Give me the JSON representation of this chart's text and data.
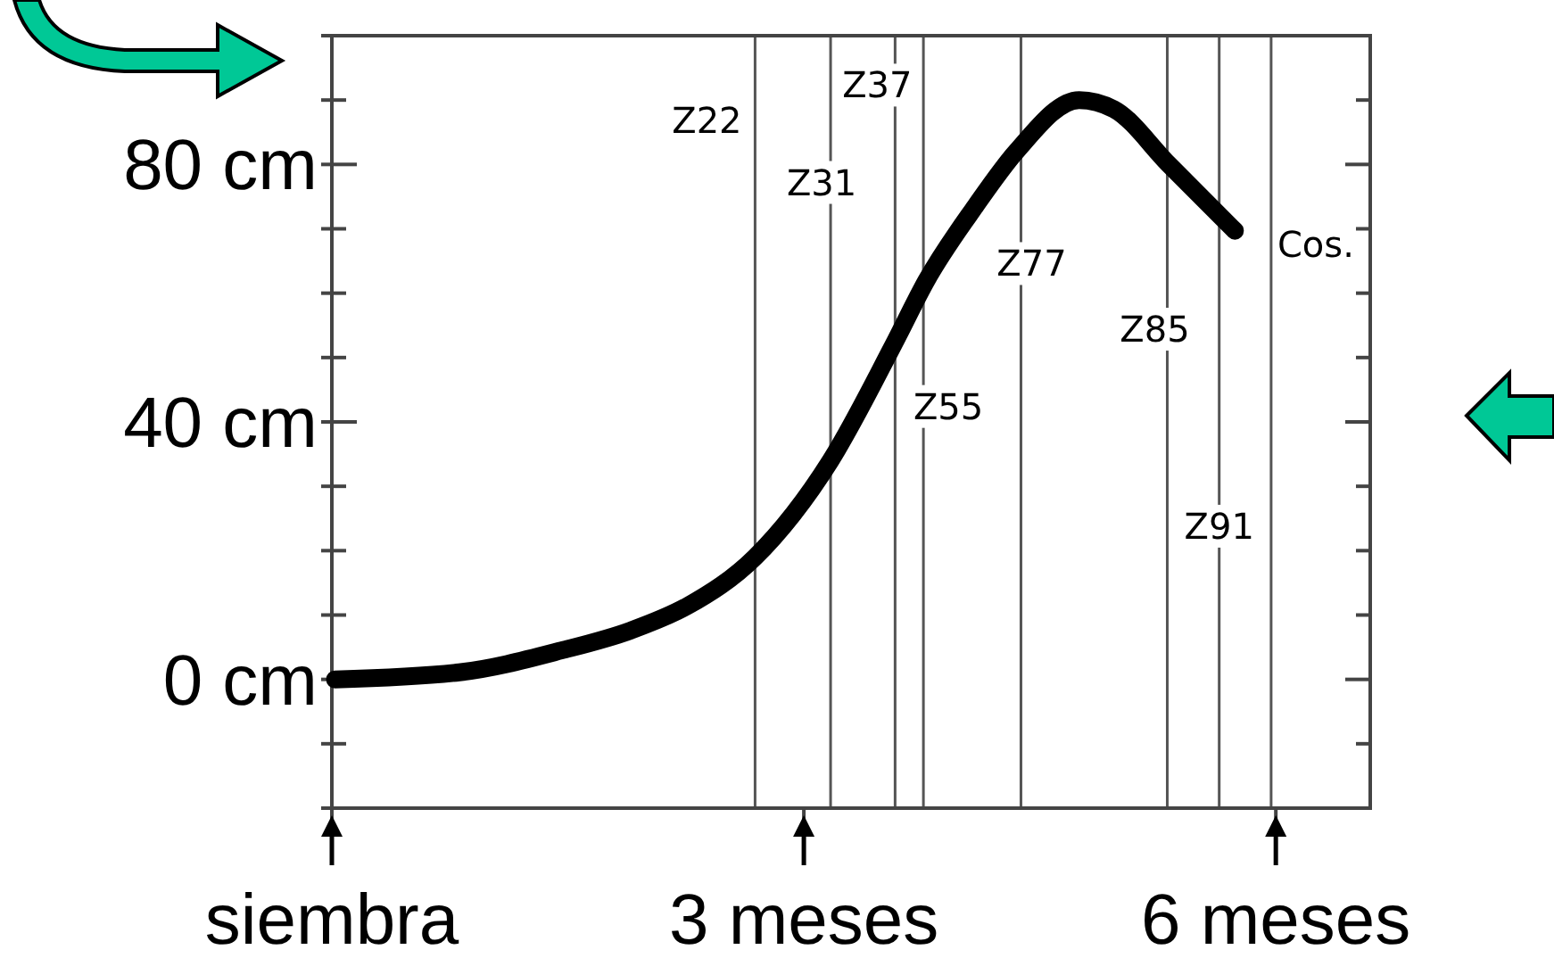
{
  "chart_data": {
    "type": "line",
    "x": [
      0.02,
      0.81,
      1.46,
      1.9,
      2.26,
      2.69,
      3.17,
      3.57,
      3.78,
      4.09,
      4.35,
      4.75,
      4.97,
      5.32,
      5.74
    ],
    "series": [
      {
        "color": "#000000",
        "values": [
          0,
          1.1,
          4.5,
          7.6,
          11.4,
          19,
          34,
          52,
          62,
          73.5,
          82,
          90,
          88.6,
          80,
          69.7
        ]
      }
    ],
    "xlim": [
      0,
      6.6
    ],
    "xticks": [
      {
        "value": 0,
        "label": "siembra"
      },
      {
        "value": 3,
        "label": "3 meses"
      },
      {
        "value": 6,
        "label": "6 meses"
      }
    ],
    "ylim": [
      -20,
      100
    ],
    "yticks": [
      {
        "value": -20,
        "label": null
      },
      {
        "value": -10,
        "label": null
      },
      {
        "value": 0,
        "label": "0 cm"
      },
      {
        "value": 10,
        "label": null
      },
      {
        "value": 20,
        "label": null
      },
      {
        "value": 30,
        "label": null
      },
      {
        "value": 40,
        "label": "40 cm"
      },
      {
        "value": 50,
        "label": null
      },
      {
        "value": 60,
        "label": null
      },
      {
        "value": 70,
        "label": null
      },
      {
        "value": 80,
        "label": "80 cm"
      },
      {
        "value": 90,
        "label": null
      },
      {
        "value": 100,
        "label": null
      }
    ],
    "grid": false,
    "marker": "none",
    "line_style": "solid",
    "ref_lines": [
      {
        "axis": "x",
        "value": 2.69,
        "color": "#555555",
        "label": "Z22"
      },
      {
        "axis": "x",
        "value": 3.17,
        "color": "#555555",
        "label": "Z31"
      },
      {
        "axis": "x",
        "value": 3.58,
        "color": "#555555",
        "label": "Z37"
      },
      {
        "axis": "x",
        "value": 3.76,
        "color": "#555555",
        "label": "Z55"
      },
      {
        "axis": "x",
        "value": 4.38,
        "color": "#555555",
        "label": "Z77"
      },
      {
        "axis": "x",
        "value": 5.31,
        "color": "#555555",
        "label": "Z85"
      },
      {
        "axis": "x",
        "value": 5.64,
        "color": "#555555",
        "label": "Z91"
      },
      {
        "axis": "x",
        "value": 5.97,
        "color": "#555555",
        "label": "Cos."
      }
    ]
  }
}
